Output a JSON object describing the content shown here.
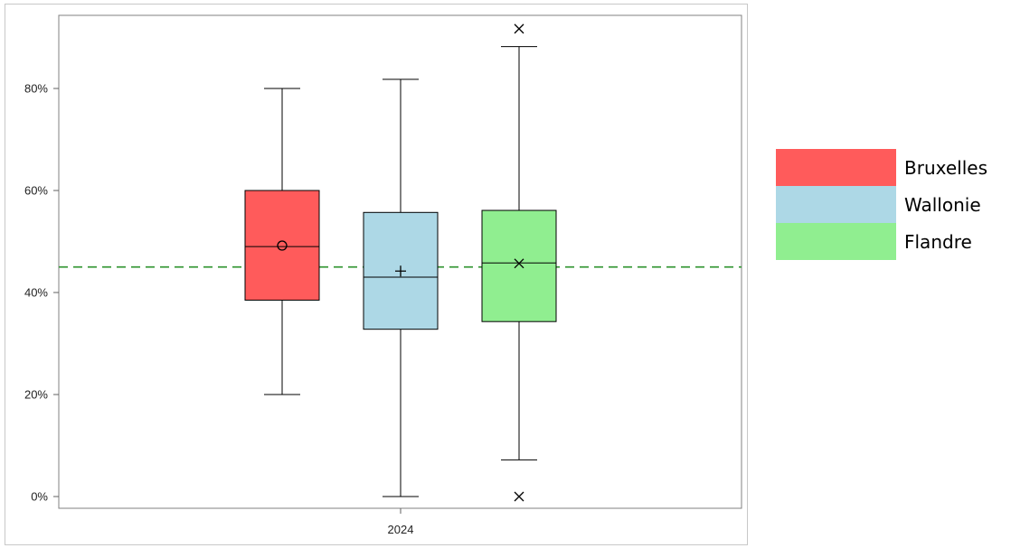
{
  "chart_data": {
    "type": "box",
    "category": "2024",
    "y_ticks": [
      "0%",
      "20%",
      "40%",
      "60%",
      "80%"
    ],
    "ylim": [
      0,
      0.92
    ],
    "reference_line": {
      "value": 0.45,
      "color": "#3a9a3a",
      "style": "dashed"
    },
    "grid": false,
    "legend_position": "right",
    "series": [
      {
        "name": "Bruxelles",
        "color": "#ff5b5b",
        "mean_marker": "circle",
        "whisker_low": 0.2,
        "q1": 0.385,
        "median": 0.49,
        "q3": 0.6,
        "whisker_high": 0.8,
        "mean": 0.492,
        "outliers": []
      },
      {
        "name": "Wallonie",
        "color": "#add8e6",
        "mean_marker": "plus",
        "whisker_low": 0.0,
        "q1": 0.328,
        "median": 0.43,
        "q3": 0.557,
        "whisker_high": 0.818,
        "mean": 0.442,
        "outliers": []
      },
      {
        "name": "Flandre",
        "color": "#90ee90",
        "mean_marker": "x",
        "whisker_low": 0.072,
        "q1": 0.343,
        "median": 0.458,
        "q3": 0.561,
        "whisker_high": 0.882,
        "mean": 0.457,
        "outliers": [
          0.0,
          0.917
        ]
      }
    ]
  }
}
